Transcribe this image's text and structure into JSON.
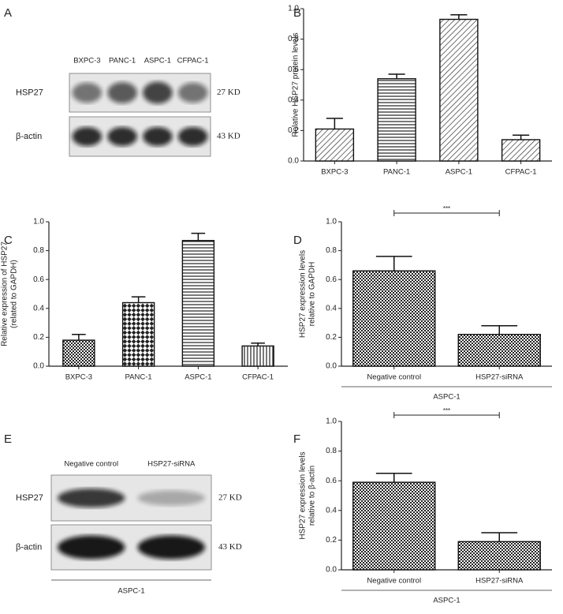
{
  "panels": [
    "A",
    "B",
    "C",
    "D",
    "E",
    "F"
  ],
  "blots": [
    {
      "lanes": [
        "BXPC-3",
        "PANC-1",
        "ASPC-1",
        "CFPAC-1"
      ],
      "rows": [
        {
          "label": "HSP27",
          "size": "27 KD"
        },
        {
          "label": "β-actin",
          "size": "43 KD"
        }
      ]
    },
    {
      "lanes": [
        "Negative control",
        "HSP27-siRNA"
      ],
      "rows": [
        {
          "label": "HSP27",
          "size": "27 KD"
        },
        {
          "label": "β-actin",
          "size": "43 KD"
        }
      ],
      "xlabel": "ASPC-1"
    }
  ],
  "chart_data": [
    {
      "type": "bar",
      "ylabel": [
        "Relative HSP27 protein levels"
      ],
      "categories": [
        "BXPC-3",
        "PANC-1",
        "ASPC-1",
        "CFPAC-1"
      ],
      "values": [
        0.21,
        0.54,
        0.93,
        0.14
      ],
      "errors": [
        0.07,
        0.03,
        0.03,
        0.03
      ],
      "patterns": [
        "diagonal",
        "horizontal",
        "diagonal",
        "diagonal"
      ],
      "ylim": [
        0,
        1.0
      ],
      "yticks": [
        {
          "value": 0,
          "label": "0.0"
        },
        {
          "value": 0.2,
          "label": "0.2"
        },
        {
          "value": 0.4,
          "label": "0.4"
        },
        {
          "value": 0.6,
          "label": "0.6"
        },
        {
          "value": 0.8,
          "label": "0.8"
        },
        {
          "value": 1.0,
          "label": "1.0"
        }
      ]
    },
    {
      "type": "bar",
      "ylabel": [
        "Relative expression of HSP27",
        "(related to GAPDH)"
      ],
      "categories": [
        "BXPC-3",
        "PANC-1",
        "ASPC-1",
        "CFPAC-1"
      ],
      "values": [
        0.18,
        0.44,
        0.87,
        0.14
      ],
      "errors": [
        0.04,
        0.04,
        0.05,
        0.02
      ],
      "patterns": [
        "checker",
        "checker-large",
        "horizontal",
        "vertical"
      ],
      "ylim": [
        0,
        1.0
      ],
      "yticks": [
        {
          "value": 0,
          "label": "0.0"
        },
        {
          "value": 0.2,
          "label": "0.2"
        },
        {
          "value": 0.4,
          "label": "0.4"
        },
        {
          "value": 0.6,
          "label": "0.6"
        },
        {
          "value": 0.8,
          "label": "0.8"
        },
        {
          "value": 1.0,
          "label": "1.0"
        }
      ]
    },
    {
      "type": "bar",
      "ylabel": [
        "HSP27 expression levels",
        "relative to GAPDH"
      ],
      "categories": [
        "Negative control",
        "HSP27-siRNA"
      ],
      "xlabel": "ASPC-1",
      "values": [
        0.66,
        0.22
      ],
      "errors": [
        0.1,
        0.06
      ],
      "patterns": [
        "checker",
        "checker"
      ],
      "annotation": "***",
      "ylim": [
        0,
        1.0
      ],
      "yticks": [
        {
          "value": 0,
          "label": "0.0"
        },
        {
          "value": 0.2,
          "label": "0.2"
        },
        {
          "value": 0.4,
          "label": "0.4"
        },
        {
          "value": 0.6,
          "label": "0.6"
        },
        {
          "value": 0.8,
          "label": "0.8"
        },
        {
          "value": 1.0,
          "label": "1.0"
        }
      ]
    },
    {
      "type": "bar",
      "ylabel": [
        "HSP27 expression levels",
        "relative to β-actin"
      ],
      "categories": [
        "Negative control",
        "HSP27-siRNA"
      ],
      "xlabel": "ASPC-1",
      "values": [
        0.59,
        0.19
      ],
      "errors": [
        0.06,
        0.06
      ],
      "patterns": [
        "checker",
        "checker"
      ],
      "annotation": "***",
      "ylim": [
        0,
        1.0
      ],
      "yticks": [
        {
          "value": 0,
          "label": "0.0"
        },
        {
          "value": 0.2,
          "label": "0.2"
        },
        {
          "value": 0.4,
          "label": "0.4"
        },
        {
          "value": 0.6,
          "label": "0.6"
        },
        {
          "value": 0.8,
          "label": "0.8"
        },
        {
          "value": 1.0,
          "label": "1.0"
        }
      ]
    }
  ]
}
